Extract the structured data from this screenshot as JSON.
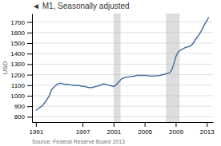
{
  "chart_data": {
    "type": "line",
    "title": "◄ M1, Seasonally adjusted",
    "y_label": "USD",
    "annotation": "Source: Federal Reserve Board 2013",
    "color": "#4a6fa5",
    "grid": true,
    "xlim": [
      1990.5,
      2013.8
    ],
    "ylim": [
      750,
      1780
    ],
    "xticks": [
      1991,
      1997,
      2001,
      2005,
      2009,
      2013
    ],
    "yticks": [
      800,
      900,
      1000,
      1100,
      1200,
      1300,
      1400,
      1500,
      1600,
      1700
    ],
    "bands": [
      {
        "x0": 2001.0,
        "x1": 2001.9
      },
      {
        "x0": 2007.75,
        "x1": 2009.5
      }
    ],
    "x": [
      1991.0,
      1991.25,
      1991.5,
      1991.75,
      1992.0,
      1992.25,
      1992.5,
      1992.75,
      1993.0,
      1993.25,
      1993.5,
      1993.75,
      1994.0,
      1994.25,
      1994.5,
      1994.75,
      1995.0,
      1995.25,
      1995.5,
      1995.75,
      1996.0,
      1996.25,
      1996.5,
      1996.75,
      1997.0,
      1997.25,
      1997.5,
      1997.75,
      1998.0,
      1998.25,
      1998.5,
      1998.75,
      1999.0,
      1999.25,
      1999.5,
      1999.75,
      2000.0,
      2000.25,
      2000.5,
      2000.75,
      2001.0,
      2001.25,
      2001.5,
      2001.75,
      2002.0,
      2002.25,
      2002.5,
      2002.75,
      2003.0,
      2003.25,
      2003.5,
      2003.75,
      2004.0,
      2004.25,
      2004.5,
      2004.75,
      2005.0,
      2005.25,
      2005.5,
      2005.75,
      2006.0,
      2006.25,
      2006.5,
      2006.75,
      2007.0,
      2007.25,
      2007.5,
      2007.75,
      2008.0,
      2008.25,
      2008.5,
      2008.75,
      2009.0,
      2009.25,
      2009.5,
      2009.75,
      2010.0,
      2010.25,
      2010.5,
      2010.75,
      2011.0,
      2011.25,
      2011.5,
      2011.75,
      2012.0,
      2012.25,
      2012.5,
      2012.75,
      2013.0,
      2013.25
    ],
    "values": [
      860,
      875,
      888,
      900,
      920,
      945,
      972,
      1005,
      1055,
      1075,
      1095,
      1108,
      1118,
      1118,
      1112,
      1108,
      1108,
      1108,
      1103,
      1098,
      1098,
      1098,
      1098,
      1093,
      1088,
      1088,
      1083,
      1078,
      1078,
      1078,
      1083,
      1088,
      1093,
      1098,
      1108,
      1112,
      1108,
      1103,
      1098,
      1093,
      1088,
      1098,
      1118,
      1138,
      1158,
      1168,
      1173,
      1178,
      1178,
      1183,
      1183,
      1188,
      1193,
      1193,
      1193,
      1193,
      1193,
      1193,
      1190,
      1188,
      1188,
      1188,
      1190,
      1191,
      1193,
      1198,
      1203,
      1208,
      1213,
      1218,
      1248,
      1298,
      1368,
      1408,
      1428,
      1438,
      1448,
      1458,
      1463,
      1468,
      1478,
      1498,
      1528,
      1553,
      1578,
      1608,
      1645,
      1682,
      1710,
      1745
    ]
  }
}
